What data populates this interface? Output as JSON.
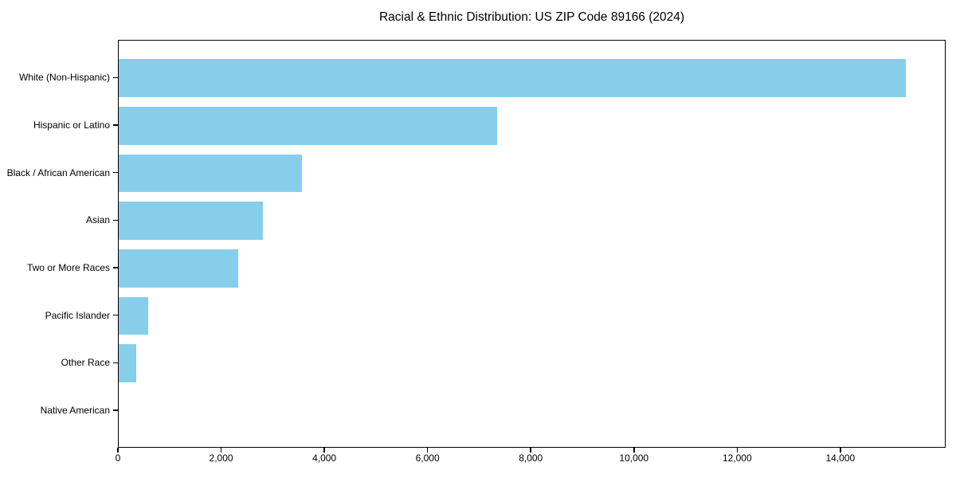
{
  "chart_data": {
    "type": "bar",
    "orientation": "horizontal",
    "title": "Racial & Ethnic Distribution: US ZIP Code 89166 (2024)",
    "categories": [
      "White (Non-Hispanic)",
      "Hispanic or Latino",
      "Black / African American",
      "Asian",
      "Two or More Races",
      "Pacific Islander",
      "Other Race",
      "Native American"
    ],
    "values": [
      15260,
      7335,
      3550,
      2800,
      2320,
      570,
      340,
      0
    ],
    "xlabel": "",
    "ylabel": "",
    "xlim": [
      0,
      16040
    ],
    "x_ticks": [
      0,
      2000,
      4000,
      6000,
      8000,
      10000,
      12000,
      14000
    ],
    "x_tick_labels": [
      "0",
      "2,000",
      "4,000",
      "6,000",
      "8,000",
      "10,000",
      "12,000",
      "14,000"
    ],
    "bar_color": "#87CEEB",
    "text_color": "#000000",
    "grid": false,
    "legend": null
  }
}
